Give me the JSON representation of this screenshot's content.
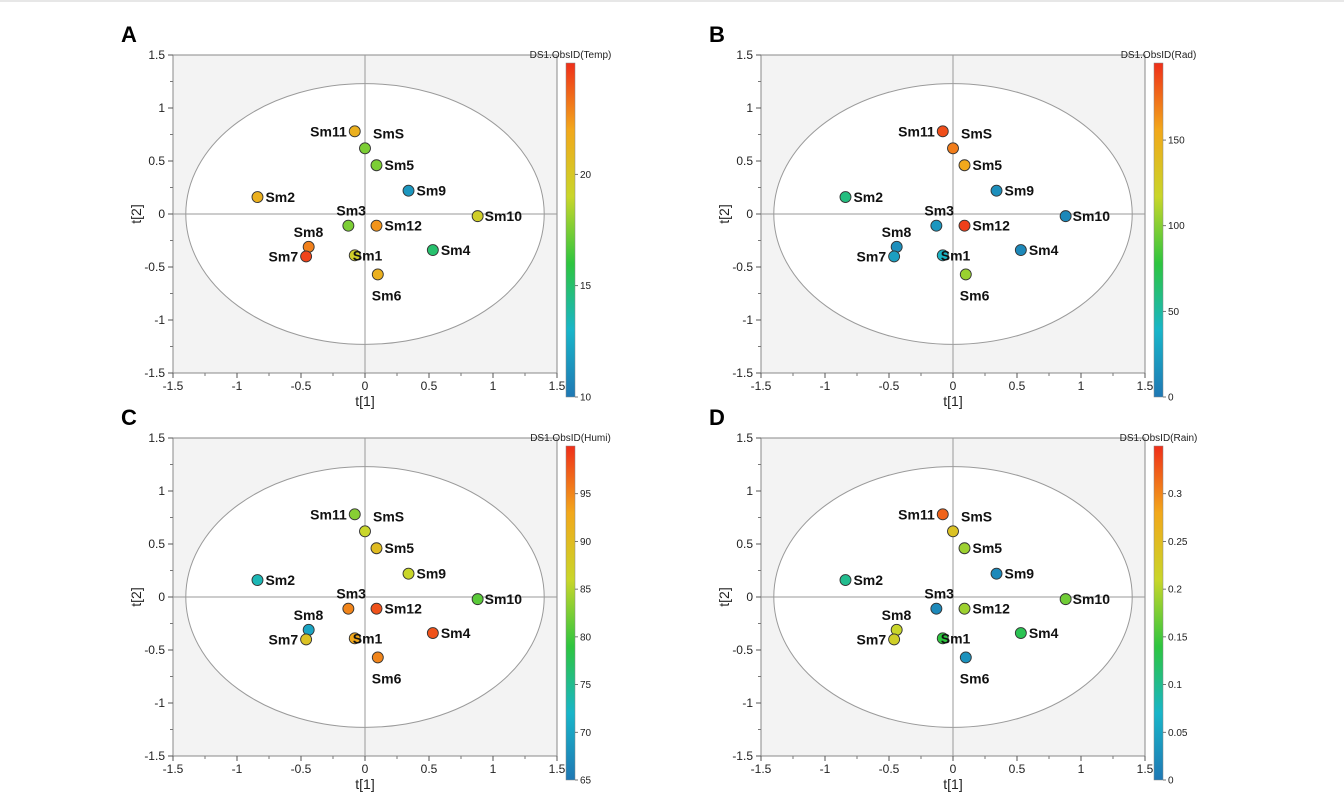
{
  "chart_data": [
    {
      "panel": "A",
      "type": "scatter",
      "xlabel": "t[1]",
      "ylabel": "t[2]",
      "xlim": [
        -1.5,
        1.5
      ],
      "ylim": [
        -1.5,
        1.5
      ],
      "xticks": [
        "-1.5",
        "-1",
        "-0.5",
        "0",
        "0.5",
        "1",
        "1.5"
      ],
      "yticks": [
        "-1.5",
        "-1",
        "-0.5",
        "0",
        "0.5",
        "1",
        "1.5"
      ],
      "colorbar": {
        "title": "DS1.ObsID(Temp)",
        "min": 10,
        "max": 25,
        "ticks": [
          "10",
          "15",
          "20"
        ]
      },
      "points": [
        {
          "label": "Sm11",
          "x": -0.08,
          "y": 0.78,
          "c": 21.5
        },
        {
          "label": "SmS",
          "x": 0.0,
          "y": 0.62,
          "c": 17.5
        },
        {
          "label": "Sm5",
          "x": 0.09,
          "y": 0.46,
          "c": 17.5
        },
        {
          "label": "Sm9",
          "x": 0.34,
          "y": 0.22,
          "c": 11.5
        },
        {
          "label": "Sm2",
          "x": -0.84,
          "y": 0.16,
          "c": 21.5
        },
        {
          "label": "Sm3",
          "x": -0.13,
          "y": -0.11,
          "c": 17.5
        },
        {
          "label": "Sm12",
          "x": 0.09,
          "y": -0.11,
          "c": 22.5
        },
        {
          "label": "Sm10",
          "x": 0.88,
          "y": -0.02,
          "c": 19.5
        },
        {
          "label": "Sm8",
          "x": -0.44,
          "y": -0.31,
          "c": 23.0
        },
        {
          "label": "Sm7",
          "x": -0.46,
          "y": -0.4,
          "c": 24.5
        },
        {
          "label": "Sm1",
          "x": -0.08,
          "y": -0.39,
          "c": 19.5
        },
        {
          "label": "Sm4",
          "x": 0.53,
          "y": -0.34,
          "c": 15.0
        },
        {
          "label": "Sm6",
          "x": 0.1,
          "y": -0.57,
          "c": 21.5
        }
      ]
    },
    {
      "panel": "B",
      "type": "scatter",
      "xlabel": "t[1]",
      "ylabel": "t[2]",
      "xlim": [
        -1.5,
        1.5
      ],
      "ylim": [
        -1.5,
        1.5
      ],
      "xticks": [
        "-1.5",
        "-1",
        "-0.5",
        "0",
        "0.5",
        "1",
        "1.5"
      ],
      "yticks": [
        "-1.5",
        "-1",
        "-0.5",
        "0",
        "0.5",
        "1",
        "1.5"
      ],
      "colorbar": {
        "title": "DS1.ObsID(Rad)",
        "min": 0,
        "max": 195,
        "ticks": [
          "0",
          "50",
          "100",
          "150"
        ]
      },
      "points": [
        {
          "label": "Sm11",
          "x": -0.08,
          "y": 0.78,
          "c": 185
        },
        {
          "label": "SmS",
          "x": 0.0,
          "y": 0.62,
          "c": 170
        },
        {
          "label": "Sm5",
          "x": 0.09,
          "y": 0.46,
          "c": 155
        },
        {
          "label": "Sm9",
          "x": 0.34,
          "y": 0.22,
          "c": 15
        },
        {
          "label": "Sm2",
          "x": -0.84,
          "y": 0.16,
          "c": 60
        },
        {
          "label": "Sm3",
          "x": -0.13,
          "y": -0.11,
          "c": 20
        },
        {
          "label": "Sm12",
          "x": 0.09,
          "y": -0.11,
          "c": 190
        },
        {
          "label": "Sm10",
          "x": 0.88,
          "y": -0.02,
          "c": 10
        },
        {
          "label": "Sm8",
          "x": -0.44,
          "y": -0.31,
          "c": 15
        },
        {
          "label": "Sm7",
          "x": -0.46,
          "y": -0.4,
          "c": 25
        },
        {
          "label": "Sm1",
          "x": -0.08,
          "y": -0.39,
          "c": 40
        },
        {
          "label": "Sm4",
          "x": 0.53,
          "y": -0.34,
          "c": 10
        },
        {
          "label": "Sm6",
          "x": 0.1,
          "y": -0.57,
          "c": 105
        }
      ]
    },
    {
      "panel": "C",
      "type": "scatter",
      "xlabel": "t[1]",
      "ylabel": "t[2]",
      "xlim": [
        -1.5,
        1.5
      ],
      "ylim": [
        -1.5,
        1.5
      ],
      "xticks": [
        "-1.5",
        "-1",
        "-0.5",
        "0",
        "0.5",
        "1",
        "1.5"
      ],
      "yticks": [
        "-1.5",
        "-1",
        "-0.5",
        "0",
        "0.5",
        "1",
        "1.5"
      ],
      "colorbar": {
        "title": "DS1.ObsID(Humi)",
        "min": 65,
        "max": 100,
        "ticks": [
          "65",
          "70",
          "75",
          "80",
          "85",
          "90",
          "95"
        ]
      },
      "points": [
        {
          "label": "Sm11",
          "x": -0.08,
          "y": 0.78,
          "c": 83
        },
        {
          "label": "SmS",
          "x": 0.0,
          "y": 0.62,
          "c": 86
        },
        {
          "label": "Sm5",
          "x": 0.09,
          "y": 0.46,
          "c": 90
        },
        {
          "label": "Sm9",
          "x": 0.34,
          "y": 0.22,
          "c": 86
        },
        {
          "label": "Sm2",
          "x": -0.84,
          "y": 0.16,
          "c": 73
        },
        {
          "label": "Sm3",
          "x": -0.13,
          "y": -0.11,
          "c": 95
        },
        {
          "label": "Sm12",
          "x": 0.09,
          "y": -0.11,
          "c": 98
        },
        {
          "label": "Sm10",
          "x": 0.88,
          "y": -0.02,
          "c": 81
        },
        {
          "label": "Sm8",
          "x": -0.44,
          "y": -0.31,
          "c": 70
        },
        {
          "label": "Sm7",
          "x": -0.46,
          "y": -0.4,
          "c": 89
        },
        {
          "label": "Sm1",
          "x": -0.08,
          "y": -0.39,
          "c": 93
        },
        {
          "label": "Sm4",
          "x": 0.53,
          "y": -0.34,
          "c": 98
        },
        {
          "label": "Sm6",
          "x": 0.1,
          "y": -0.57,
          "c": 95
        }
      ]
    },
    {
      "panel": "D",
      "type": "scatter",
      "xlabel": "t[1]",
      "ylabel": "t[2]",
      "xlim": [
        -1.5,
        1.5
      ],
      "ylim": [
        -1.5,
        1.5
      ],
      "xticks": [
        "-1.5",
        "-1",
        "-0.5",
        "0",
        "0.5",
        "1",
        "1.5"
      ],
      "yticks": [
        "-1.5",
        "-1",
        "-0.5",
        "0",
        "0.5",
        "1",
        "1.5"
      ],
      "colorbar": {
        "title": "DS1.ObsID(Rain)",
        "min": 0,
        "max": 0.35,
        "ticks": [
          "0",
          "0.05",
          "0.1",
          "0.15",
          "0.2",
          "0.25",
          "0.3"
        ]
      },
      "points": [
        {
          "label": "Sm11",
          "x": -0.08,
          "y": 0.78,
          "c": 0.32
        },
        {
          "label": "SmS",
          "x": 0.0,
          "y": 0.62,
          "c": 0.24
        },
        {
          "label": "Sm5",
          "x": 0.09,
          "y": 0.46,
          "c": 0.19
        },
        {
          "label": "Sm9",
          "x": 0.34,
          "y": 0.22,
          "c": 0.02
        },
        {
          "label": "Sm2",
          "x": -0.84,
          "y": 0.16,
          "c": 0.1
        },
        {
          "label": "Sm3",
          "x": -0.13,
          "y": -0.11,
          "c": 0.02
        },
        {
          "label": "Sm12",
          "x": 0.09,
          "y": -0.11,
          "c": 0.19
        },
        {
          "label": "Sm10",
          "x": 0.88,
          "y": -0.02,
          "c": 0.17
        },
        {
          "label": "Sm8",
          "x": -0.44,
          "y": -0.31,
          "c": 0.21
        },
        {
          "label": "Sm7",
          "x": -0.46,
          "y": -0.4,
          "c": 0.22
        },
        {
          "label": "Sm1",
          "x": -0.08,
          "y": -0.39,
          "c": 0.14
        },
        {
          "label": "Sm4",
          "x": 0.53,
          "y": -0.34,
          "c": 0.13
        },
        {
          "label": "Sm6",
          "x": 0.1,
          "y": -0.57,
          "c": 0.03
        }
      ]
    }
  ],
  "style": {
    "plot_background": "#f3f3f3",
    "ellipse_fill": "#ffffff",
    "ellipse_stroke": "#9a9a9a",
    "colormap": [
      "#1f78b4",
      "#19b5c9",
      "#2ec53f",
      "#c9d62a",
      "#f2a81b",
      "#ef2f1a"
    ]
  }
}
